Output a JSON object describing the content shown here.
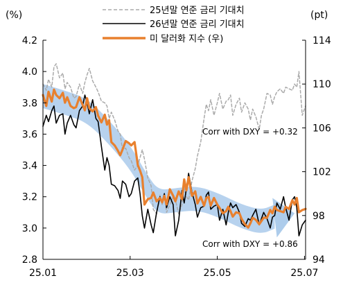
{
  "chart_data": {
    "type": "line",
    "left_unit": "(%)",
    "right_unit": "(pt)",
    "x_ticks": [
      "25.01",
      "25.03",
      "25.05",
      "25.07"
    ],
    "left_axis": {
      "ylim": [
        2.8,
        4.2
      ],
      "ticks": [
        "4.2",
        "4.0",
        "3.8",
        "3.6",
        "3.4",
        "3.2",
        "3.0",
        "2.8"
      ]
    },
    "right_axis": {
      "ylim": [
        94,
        114
      ],
      "ticks": [
        "114",
        "110",
        "106",
        "102",
        "98",
        "94"
      ]
    },
    "legend": [
      {
        "label": "25년말 연준 금리 기대치",
        "style": "dashed",
        "color": "#aaaaaa"
      },
      {
        "label": "26년말 연준 금리 기대치",
        "style": "solid",
        "color": "#000000"
      },
      {
        "label": "미 달러화 지수 (우)",
        "style": "solid",
        "color": "#e8802e"
      }
    ],
    "annotations": [
      {
        "text": "Corr with DXY = +0.32"
      },
      {
        "text": "Corr with DXY = +0.86"
      }
    ],
    "series": [
      {
        "name": "25년말 연준 금리 기대치",
        "axis": "left",
        "color": "#aaaaaa",
        "dash": true,
        "x": [
          0,
          3,
          5,
          8,
          10,
          12,
          15,
          18,
          20,
          22,
          25,
          28,
          30,
          33,
          36,
          38,
          40,
          42,
          45,
          48,
          50,
          53,
          56,
          58,
          60,
          62,
          65,
          68,
          70,
          72,
          75,
          78,
          80,
          83,
          86,
          88,
          90,
          92,
          95,
          98,
          100,
          103,
          106,
          108,
          110,
          112,
          115,
          118,
          120,
          123,
          126,
          128,
          130,
          132,
          135,
          138,
          140,
          143,
          146,
          148,
          150,
          152,
          155,
          158,
          160,
          163,
          166,
          168,
          170,
          172,
          175,
          178,
          180,
          183,
          186,
          188,
          190,
          193,
          196,
          198,
          200,
          203,
          206,
          208,
          210,
          212,
          215,
          218,
          220,
          223,
          226,
          228,
          230,
          232,
          235,
          238
        ],
        "y": [
          3.92,
          3.88,
          3.95,
          3.9,
          4.03,
          4.05,
          3.96,
          3.99,
          3.89,
          3.93,
          3.9,
          3.83,
          3.84,
          3.92,
          3.86,
          3.93,
          3.98,
          4.02,
          3.94,
          3.9,
          3.87,
          3.81,
          3.8,
          3.78,
          3.7,
          3.74,
          3.69,
          3.62,
          3.6,
          3.5,
          3.51,
          3.45,
          3.43,
          3.37,
          3.4,
          3.45,
          3.5,
          3.44,
          3.32,
          3.27,
          3.12,
          3.09,
          3.21,
          3.15,
          3.2,
          3.1,
          3.15,
          3.2,
          3.18,
          3.09,
          3.15,
          3.26,
          3.2,
          3.18,
          3.3,
          3.38,
          3.46,
          3.55,
          3.7,
          3.79,
          3.75,
          3.82,
          3.72,
          3.8,
          3.86,
          3.76,
          3.81,
          3.82,
          3.85,
          3.72,
          3.79,
          3.83,
          3.74,
          3.8,
          3.76,
          3.69,
          3.76,
          3.71,
          3.63,
          3.72,
          3.76,
          3.86,
          3.85,
          3.79,
          3.84,
          3.87,
          3.89,
          3.86,
          3.9,
          3.89,
          3.88,
          3.92,
          3.9,
          4.0,
          3.72,
          3.78
        ]
      },
      {
        "name": "26년말 연준 금리 기대치",
        "axis": "left",
        "color": "#000000",
        "dash": false,
        "x": [
          0,
          3,
          5,
          8,
          10,
          12,
          15,
          18,
          20,
          22,
          25,
          28,
          30,
          33,
          36,
          38,
          40,
          42,
          45,
          48,
          50,
          53,
          56,
          58,
          60,
          62,
          65,
          68,
          70,
          72,
          75,
          78,
          80,
          83,
          86,
          88,
          90,
          92,
          95,
          98,
          100,
          103,
          106,
          108,
          110,
          112,
          115,
          118,
          120,
          123,
          126,
          128,
          130,
          132,
          135,
          138,
          140,
          143,
          146,
          148,
          150,
          152,
          155,
          158,
          160,
          163,
          166,
          168,
          170,
          172,
          175,
          178,
          180,
          183,
          186,
          188,
          190,
          193,
          196,
          198,
          200,
          203,
          206,
          208,
          210,
          212,
          215,
          218,
          220,
          223,
          226,
          228,
          230,
          232,
          235,
          238
        ],
        "y": [
          3.65,
          3.72,
          3.68,
          3.75,
          3.78,
          3.67,
          3.72,
          3.73,
          3.6,
          3.67,
          3.72,
          3.66,
          3.64,
          3.75,
          3.78,
          3.85,
          3.8,
          3.73,
          3.82,
          3.7,
          3.68,
          3.52,
          3.37,
          3.45,
          3.4,
          3.28,
          3.27,
          3.24,
          3.19,
          3.3,
          3.28,
          3.2,
          3.22,
          3.3,
          3.32,
          3.22,
          3.08,
          3.0,
          3.12,
          3.02,
          2.97,
          3.1,
          3.2,
          3.17,
          3.22,
          3.13,
          3.2,
          3.15,
          2.95,
          3.05,
          3.24,
          3.16,
          3.25,
          3.35,
          3.23,
          3.15,
          3.07,
          3.13,
          3.14,
          3.21,
          3.23,
          3.12,
          3.14,
          3.15,
          3.05,
          3.12,
          3.02,
          3.1,
          3.16,
          3.13,
          3.15,
          3.1,
          3.03,
          3.01,
          3.06,
          3.05,
          3.08,
          3.12,
          3.02,
          3.06,
          3.1,
          3.06,
          3.0,
          3.07,
          3.08,
          3.16,
          3.12,
          3.2,
          3.13,
          3.05,
          3.18,
          3.2,
          3.13,
          2.95,
          3.02,
          3.05
        ]
      },
      {
        "name": "미 달러화 지수 (우)",
        "axis": "right",
        "color": "#e8802e",
        "dash": false,
        "x": [
          0,
          3,
          5,
          8,
          10,
          12,
          15,
          18,
          20,
          22,
          25,
          28,
          30,
          33,
          36,
          38,
          40,
          42,
          45,
          48,
          50,
          53,
          56,
          58,
          60,
          62,
          65,
          68,
          70,
          72,
          75,
          78,
          80,
          83,
          86,
          88,
          90,
          92,
          95,
          98,
          100,
          103,
          106,
          108,
          110,
          112,
          115,
          118,
          120,
          123,
          126,
          128,
          130,
          132,
          135,
          138,
          140,
          143,
          146,
          148,
          150,
          152,
          155,
          158,
          160,
          163,
          166,
          168,
          170,
          172,
          175,
          178,
          180,
          183,
          186,
          188,
          190,
          193,
          196,
          198,
          200,
          203,
          206,
          208,
          210,
          212,
          215,
          218,
          220,
          223,
          226,
          228,
          230,
          232,
          235,
          238
        ],
        "y": [
          109.0,
          108.0,
          109.3,
          108.4,
          109.5,
          109.0,
          108.7,
          109.2,
          108.3,
          108.8,
          108.0,
          107.8,
          107.9,
          108.8,
          108.1,
          107.6,
          108.7,
          107.8,
          107.5,
          107.9,
          107.1,
          106.5,
          107.2,
          106.3,
          106.7,
          104.7,
          104.4,
          103.9,
          103.5,
          104.0,
          104.8,
          104.6,
          104.4,
          104.7,
          102.6,
          102.1,
          101.5,
          99.0,
          99.5,
          99.6,
          100.1,
          99.3,
          99.6,
          99.2,
          99.8,
          99.0,
          100.4,
          99.8,
          99.3,
          100.2,
          99.5,
          101.3,
          100.3,
          101.5,
          99.8,
          100.2,
          99.1,
          99.7,
          98.9,
          99.6,
          99.7,
          98.9,
          99.6,
          99.0,
          98.7,
          98.2,
          98.4,
          98.8,
          98.4,
          97.9,
          98.3,
          98.2,
          97.7,
          97.2,
          96.9,
          97.3,
          97.8,
          97.6,
          97.2,
          97.5,
          97.8,
          97.8,
          98.5,
          98.2,
          98.8,
          98.5,
          98.4,
          98.3,
          98.8,
          98.6,
          99.4,
          99.0,
          99.6,
          98.3,
          98.5,
          98.6
        ]
      }
    ]
  }
}
